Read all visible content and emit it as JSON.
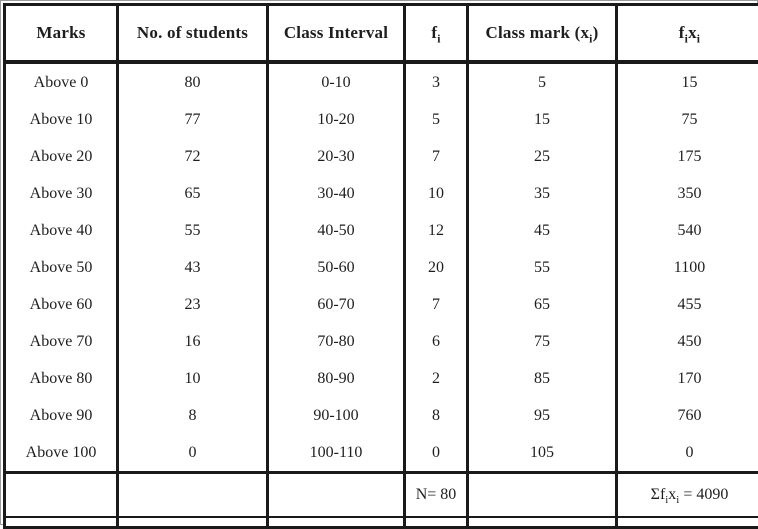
{
  "page": {
    "background": "#ffffff",
    "border_color": "#1a1a1a",
    "text_color": "#1e1e1e"
  },
  "table": {
    "columns": [
      {
        "key": "marks",
        "label": "Marks"
      },
      {
        "key": "students",
        "label": "No. of students"
      },
      {
        "key": "interval",
        "label": "Class Interval"
      },
      {
        "key": "f",
        "label": "f_i"
      },
      {
        "key": "x",
        "label": "Class mark (x_i)"
      },
      {
        "key": "fx",
        "label": "f_ix_i"
      }
    ],
    "rows": [
      {
        "marks": "Above 0",
        "students": "80",
        "interval": "0-10",
        "f": "3",
        "x": "5",
        "fx": "15"
      },
      {
        "marks": "Above 10",
        "students": "77",
        "interval": "10-20",
        "f": "5",
        "x": "15",
        "fx": "75"
      },
      {
        "marks": "Above 20",
        "students": "72",
        "interval": "20-30",
        "f": "7",
        "x": "25",
        "fx": "175"
      },
      {
        "marks": "Above 30",
        "students": "65",
        "interval": "30-40",
        "f": "10",
        "x": "35",
        "fx": "350"
      },
      {
        "marks": "Above 40",
        "students": "55",
        "interval": "40-50",
        "f": "12",
        "x": "45",
        "fx": "540"
      },
      {
        "marks": "Above 50",
        "students": "43",
        "interval": "50-60",
        "f": "20",
        "x": "55",
        "fx": "1100"
      },
      {
        "marks": "Above 60",
        "students": "23",
        "interval": "60-70",
        "f": "7",
        "x": "65",
        "fx": "455"
      },
      {
        "marks": "Above 70",
        "students": "16",
        "interval": "70-80",
        "f": "6",
        "x": "75",
        "fx": "450"
      },
      {
        "marks": "Above 80",
        "students": "10",
        "interval": "80-90",
        "f": "2",
        "x": "85",
        "fx": "170"
      },
      {
        "marks": "Above 90",
        "students": "8",
        "interval": "90-100",
        "f": "8",
        "x": "95",
        "fx": "760"
      },
      {
        "marks": "Above 100",
        "students": "0",
        "interval": "100-110",
        "f": "0",
        "x": "105",
        "fx": "0"
      }
    ],
    "footer": {
      "n_total": "N= 80",
      "fx_sum": "Σf_ix_i = 4090"
    }
  },
  "chart_data": {
    "type": "table",
    "columns": [
      "Marks",
      "No. of students",
      "Class Interval",
      "fi",
      "Class mark (xi)",
      "fixi"
    ],
    "rows": [
      [
        "Above 0",
        80,
        "0-10",
        3,
        5,
        15
      ],
      [
        "Above 10",
        77,
        "10-20",
        5,
        15,
        75
      ],
      [
        "Above 20",
        72,
        "20-30",
        7,
        25,
        175
      ],
      [
        "Above 30",
        65,
        "30-40",
        10,
        35,
        350
      ],
      [
        "Above 40",
        55,
        "40-50",
        12,
        45,
        540
      ],
      [
        "Above 50",
        43,
        "50-60",
        20,
        55,
        1100
      ],
      [
        "Above 60",
        23,
        "60-70",
        7,
        65,
        455
      ],
      [
        "Above 70",
        16,
        "70-80",
        6,
        75,
        450
      ],
      [
        "Above 80",
        10,
        "80-90",
        2,
        85,
        170
      ],
      [
        "Above 90",
        8,
        "90-100",
        8,
        95,
        760
      ],
      [
        "Above 100",
        0,
        "100-110",
        0,
        105,
        0
      ]
    ],
    "totals": {
      "N": 80,
      "sum_fixi": 4090
    }
  }
}
